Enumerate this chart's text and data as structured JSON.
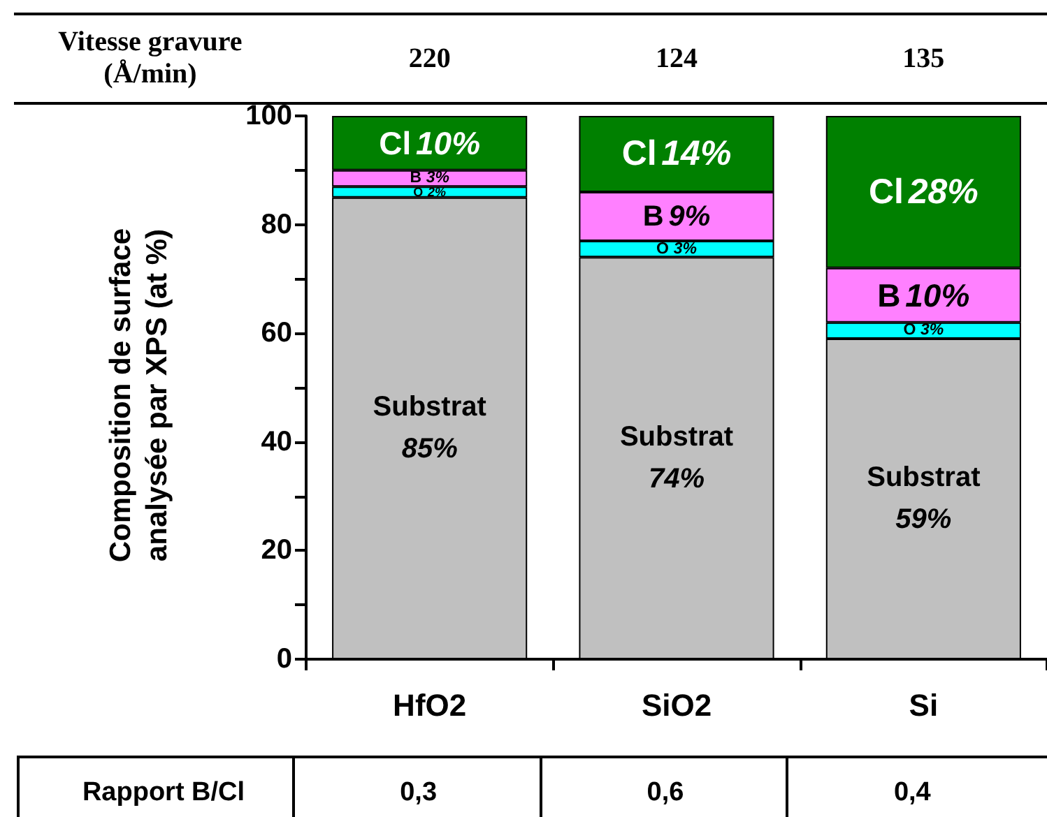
{
  "chart_data": {
    "type": "bar",
    "stacked": true,
    "ylabel": "Composition de surface analysée par XPS (at %)",
    "categories": [
      "HfO2",
      "SiO2",
      "Si"
    ],
    "series": [
      {
        "name": "Substrat",
        "color": "#c0c0c0",
        "values": [
          85,
          74,
          59
        ],
        "value_labels": [
          "85%",
          "74%",
          "59%"
        ]
      },
      {
        "name": "O",
        "color": "#00ffff",
        "values": [
          2,
          3,
          3
        ],
        "value_labels": [
          "2%",
          "3%",
          "3%"
        ]
      },
      {
        "name": "B",
        "color": "#ff80ff",
        "values": [
          3,
          9,
          10
        ],
        "value_labels": [
          "3%",
          "9%",
          "10%"
        ]
      },
      {
        "name": "Cl",
        "color": "#008000",
        "values": [
          10,
          14,
          28
        ],
        "value_labels": [
          "10%",
          "14%",
          "28%"
        ]
      }
    ],
    "ylim": [
      0,
      100
    ],
    "yticks": [
      0,
      {
        "value": 10,
        "label": null
      },
      20,
      {
        "value": 30,
        "label": null
      },
      40,
      {
        "value": 50,
        "label": null
      },
      60,
      {
        "value": 70,
        "label": null
      },
      80,
      {
        "value": 90,
        "label": null
      },
      100
    ],
    "grid": false,
    "legend": false,
    "annotations": [
      "Vitesse gravure (Å/min)",
      "220",
      "124",
      "135",
      "Rapport B/Cl",
      "0,3",
      "0,6",
      "0,4"
    ]
  }
}
